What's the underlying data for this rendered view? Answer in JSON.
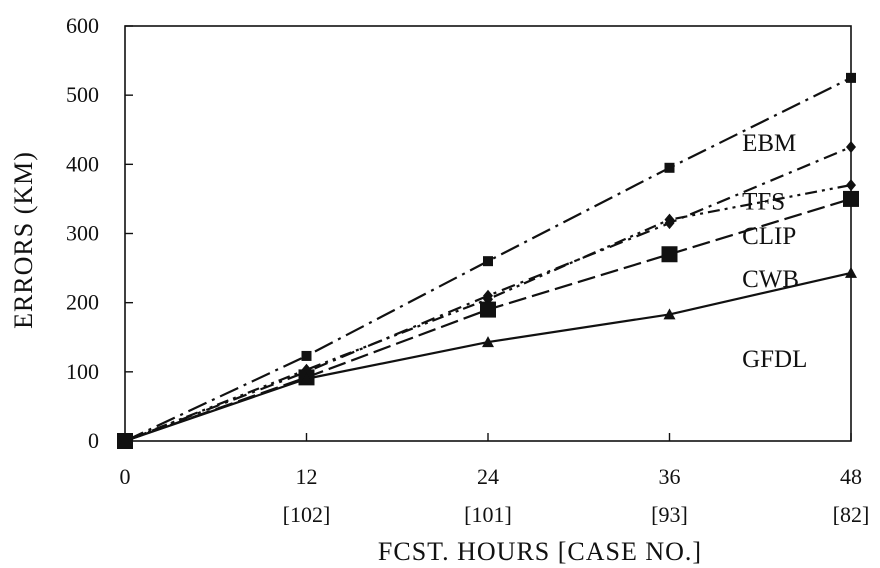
{
  "chart_data": {
    "type": "line",
    "title": "",
    "xlabel": "FCST. HOURS [CASE NO.]",
    "ylabel": "ERRORS (KM)",
    "x": [
      0,
      12,
      24,
      36,
      48
    ],
    "x_case_labels": [
      "",
      "[102]",
      "[101]",
      "[93]",
      "[82]"
    ],
    "xlim": [
      0,
      48
    ],
    "ylim": [
      0,
      600
    ],
    "y_ticks": [
      0,
      100,
      200,
      300,
      400,
      500,
      600
    ],
    "grid": false,
    "legend": "inline labels at right",
    "series": [
      {
        "name": "EBM",
        "values": [
          0,
          123,
          260,
          395,
          525
        ],
        "marker": "square-small",
        "dash": "long-dash-dot",
        "color": "#111111"
      },
      {
        "name": "TFS",
        "values": [
          0,
          100,
          210,
          315,
          425
        ],
        "marker": "diamond",
        "dash": "dash-dot",
        "color": "#111111"
      },
      {
        "name": "CLIP",
        "values": [
          0,
          103,
          205,
          320,
          370
        ],
        "marker": "diamond",
        "dash": "dash-dot-dot",
        "color": "#111111"
      },
      {
        "name": "CWB",
        "values": [
          0,
          92,
          190,
          270,
          350
        ],
        "marker": "square-large",
        "dash": "long-dash",
        "color": "#111111"
      },
      {
        "name": "GFDL",
        "values": [
          0,
          90,
          143,
          183,
          243
        ],
        "marker": "triangle",
        "dash": "solid",
        "color": "#111111"
      }
    ]
  }
}
